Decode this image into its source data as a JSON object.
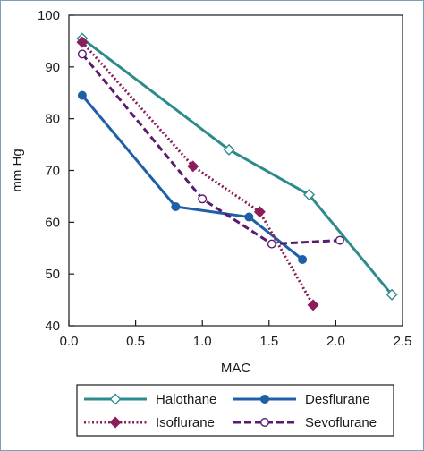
{
  "chart_data": {
    "type": "line",
    "title": "",
    "xlabel": "MAC",
    "ylabel": "mm Hg",
    "xlim": [
      0.0,
      2.5
    ],
    "ylim": [
      40,
      100
    ],
    "xticks": [
      "0.0",
      "0.5",
      "1.0",
      "1.5",
      "2.0",
      "2.5"
    ],
    "yticks": [
      "40",
      "50",
      "60",
      "70",
      "80",
      "90",
      "100"
    ],
    "grid": false,
    "legend_position": "bottom",
    "series": [
      {
        "name": "Halothane",
        "color": "#2e8b8b",
        "line_style": "solid",
        "marker": "open-diamond",
        "x": [
          0.1,
          1.2,
          1.8,
          2.42
        ],
        "y": [
          95.5,
          74,
          65.3,
          46
        ]
      },
      {
        "name": "Desflurane",
        "color": "#1f5fa8",
        "line_style": "solid",
        "marker": "filled-circle",
        "x": [
          0.1,
          0.8,
          1.35,
          1.75
        ],
        "y": [
          84.5,
          63,
          61,
          52.8
        ]
      },
      {
        "name": "Isoflurane",
        "color": "#8b1e5a",
        "line_style": "dotted",
        "marker": "filled-diamond",
        "x": [
          0.1,
          0.93,
          1.43,
          1.83
        ],
        "y": [
          94.8,
          70.8,
          62,
          44
        ]
      },
      {
        "name": "Sevoflurane",
        "color": "#5a1a6e",
        "line_style": "dashed",
        "marker": "open-circle",
        "x": [
          0.1,
          1.0,
          1.52,
          2.03
        ],
        "y": [
          92.5,
          64.5,
          55.8,
          56.5
        ]
      }
    ]
  }
}
